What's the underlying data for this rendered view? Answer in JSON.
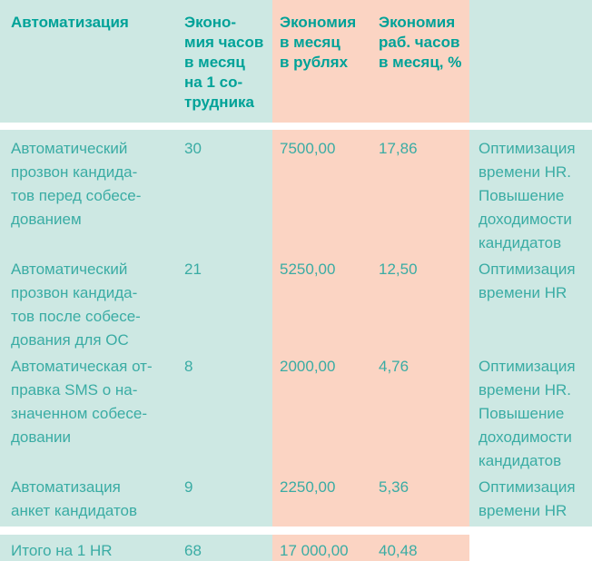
{
  "colors": {
    "teal_bg": "#cde8e3",
    "salmon_bg": "#fbd4c3",
    "header_text": "#00a298",
    "body_text": "#3aaca4"
  },
  "table": {
    "header": {
      "automation": "Автоматизация",
      "hours": "Эконо-\nмия часов\nв месяц\nна 1 со-\nтрудника",
      "rubles": "Экономия\nв месяц\nв рублях",
      "percent": "Экономия\nраб. часов\nв месяц, %",
      "benefit": ""
    },
    "rows": [
      {
        "automation": "Автоматический\nпрозвон кандида-\nтов перед собесе-\nдованием",
        "hours": "30",
        "rubles": "7500,00",
        "percent": "17,86",
        "benefit": "Оптимизация\nвремени HR.\nПовышение\nдоходимости\nкандидатов"
      },
      {
        "automation": "Автоматический\nпрозвон кандида-\nтов после собесе-\nдования для ОС",
        "hours": "21",
        "rubles": "5250,00",
        "percent": "12,50",
        "benefit": "Оптимизация\nвремени HR"
      },
      {
        "automation": "Автоматическая от-\nправка SMS о на-\nзначенном собесе-\nдовании",
        "hours": "8",
        "rubles": "2000,00",
        "percent": "4,76",
        "benefit": "Оптимизация\nвремени HR.\nПовышение\nдоходимости\nкандидатов"
      },
      {
        "automation": "Автоматизация\nанкет кандидатов",
        "hours": "9",
        "rubles": "2250,00",
        "percent": "5,36",
        "benefit": "Оптимизация\nвремени HR"
      }
    ],
    "total": {
      "label": "Итого на 1 HR",
      "hours": "68",
      "rubles": "17 000,00",
      "percent": "40,48"
    }
  }
}
